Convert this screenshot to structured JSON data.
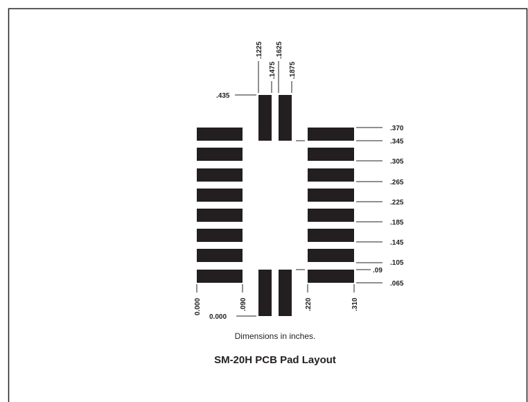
{
  "diagram": {
    "right_labels": [
      ".370",
      ".345",
      ".305",
      ".265",
      ".225",
      ".185",
      ".145",
      ".105",
      ".09",
      ".065"
    ],
    "top_labels": [
      ".1225",
      ".1475",
      ".1625",
      ".1875"
    ],
    "top_left_label": ".435",
    "bottom_left_label": "0.000",
    "bottom_labels": [
      "0.000",
      ".090",
      ".220",
      ".310"
    ],
    "caption": "Dimensions in inches.",
    "title": "SM-20H PCB Pad Layout"
  }
}
